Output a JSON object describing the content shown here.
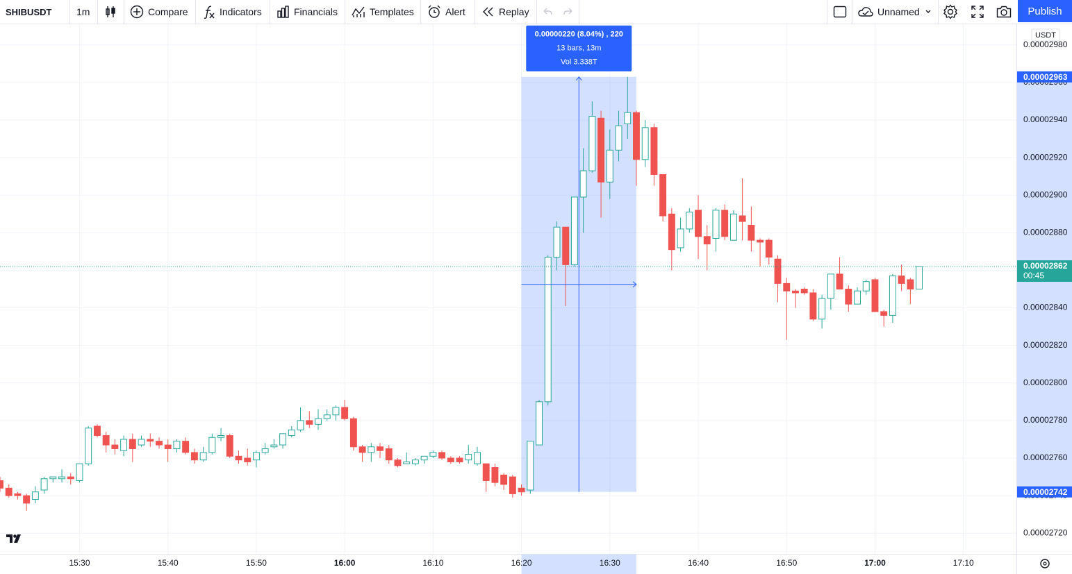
{
  "toolbar": {
    "symbol": "SHIBUSDT",
    "interval": "1m",
    "compare": "Compare",
    "indicators": "Indicators",
    "financials": "Financials",
    "templates": "Templates",
    "alert": "Alert",
    "replay": "Replay",
    "layout_name": "Unnamed",
    "publish": "Publish"
  },
  "chart_data": {
    "type": "candlestick",
    "currency": "USDT",
    "x": [
      "15:21",
      "15:22",
      "15:23",
      "15:24",
      "15:25",
      "15:26",
      "15:27",
      "15:28",
      "15:29",
      "15:30",
      "15:31",
      "15:32",
      "15:33",
      "15:34",
      "15:35",
      "15:36",
      "15:37",
      "15:38",
      "15:39",
      "15:40",
      "15:41",
      "15:42",
      "15:43",
      "15:44",
      "15:45",
      "15:46",
      "15:47",
      "15:48",
      "15:49",
      "15:50",
      "15:51",
      "15:52",
      "15:53",
      "15:54",
      "15:55",
      "15:56",
      "15:57",
      "15:58",
      "15:59",
      "16:00",
      "16:01",
      "16:02",
      "16:03",
      "16:04",
      "16:05",
      "16:06",
      "16:07",
      "16:08",
      "16:09",
      "16:10",
      "16:11",
      "16:12",
      "16:13",
      "16:14",
      "16:15",
      "16:16",
      "16:17",
      "16:18",
      "16:19",
      "16:20",
      "16:21",
      "16:22",
      "16:23",
      "16:24",
      "16:25",
      "16:26",
      "16:27",
      "16:28",
      "16:29",
      "16:30",
      "16:31",
      "16:32",
      "16:33",
      "16:34",
      "16:35",
      "16:36",
      "16:37",
      "16:38",
      "16:39",
      "16:40",
      "16:41",
      "16:42",
      "16:43",
      "16:44",
      "16:45",
      "16:46",
      "16:47",
      "16:48",
      "16:49",
      "16:50",
      "16:51",
      "16:52",
      "16:53",
      "16:54",
      "16:55",
      "16:56",
      "16:57",
      "16:58",
      "16:59",
      "17:00",
      "17:01",
      "17:02",
      "17:03",
      "17:04",
      "17:05"
    ],
    "open": [
      2.748e-05,
      2.744e-05,
      2.741e-05,
      2.74e-05,
      2.738e-05,
      2.743e-05,
      2.749e-05,
      2.749e-05,
      2.75e-05,
      2.748e-05,
      2.757e-05,
      2.777e-05,
      2.772e-05,
      2.767e-05,
      2.764e-05,
      2.77e-05,
      2.767e-05,
      2.77e-05,
      2.769e-05,
      2.767e-05,
      2.765e-05,
      2.769e-05,
      2.763e-05,
      2.759e-05,
      2.763e-05,
      2.771e-05,
      2.772e-05,
      2.761e-05,
      2.76e-05,
      2.759e-05,
      2.763e-05,
      2.766e-05,
      2.767e-05,
      2.772e-05,
      2.775e-05,
      2.78e-05,
      2.778e-05,
      2.781e-05,
      2.783e-05,
      2.787e-05,
      2.781e-05,
      2.766e-05,
      2.763e-05,
      2.766e-05,
      2.765e-05,
      2.759e-05,
      2.757e-05,
      2.757e-05,
      2.759e-05,
      2.761e-05,
      2.763e-05,
      2.76e-05,
      2.76e-05,
      2.759e-05,
      2.757e-05,
      2.757e-05,
      2.755e-05,
      2.751e-05,
      2.75e-05,
      2.744e-05,
      2.743e-05,
      2.767e-05,
      2.79e-05,
      2.867e-05,
      2.883e-05,
      2.863e-05,
      2.899e-05,
      2.913e-05,
      2.941e-05,
      2.907e-05,
      2.924e-05,
      2.938e-05,
      2.944e-05,
      2.919e-05,
      2.936e-05,
      2.911e-05,
      2.89e-05,
      2.872e-05,
      2.882e-05,
      2.892e-05,
      2.878e-05,
      2.877e-05,
      2.892e-05,
      2.876e-05,
      2.889e-05,
      2.884e-05,
      2.876e-05,
      2.876e-05,
      2.866e-05,
      2.853e-05,
      2.849e-05,
      2.85e-05,
      2.848e-05,
      2.834e-05,
      2.845e-05,
      2.858e-05,
      2.85e-05,
      2.842e-05,
      2.849e-05,
      2.855e-05,
      2.838e-05,
      2.836e-05,
      2.857e-05,
      2.855e-05,
      2.85e-05
    ],
    "high": [
      2.75e-05,
      2.746e-05,
      2.742e-05,
      2.741e-05,
      2.745e-05,
      2.75e-05,
      2.75e-05,
      2.754e-05,
      2.752e-05,
      2.757e-05,
      2.777e-05,
      2.778e-05,
      2.774e-05,
      2.77e-05,
      2.772e-05,
      2.773e-05,
      2.772e-05,
      2.773e-05,
      2.771e-05,
      2.77e-05,
      2.77e-05,
      2.771e-05,
      2.765e-05,
      2.766e-05,
      2.773e-05,
      2.776e-05,
      2.773e-05,
      2.764e-05,
      2.765e-05,
      2.764e-05,
      2.768e-05,
      2.77e-05,
      2.773e-05,
      2.777e-05,
      2.787e-05,
      2.785e-05,
      2.786e-05,
      2.786e-05,
      2.788e-05,
      2.791e-05,
      2.782e-05,
      2.767e-05,
      2.768e-05,
      2.768e-05,
      2.767e-05,
      2.76e-05,
      2.763e-05,
      2.76e-05,
      2.761e-05,
      2.764e-05,
      2.764e-05,
      2.761e-05,
      2.761e-05,
      2.767e-05,
      2.766e-05,
      2.757e-05,
      2.757e-05,
      2.752e-05,
      2.751e-05,
      2.746e-05,
      2.769e-05,
      2.791e-05,
      2.868e-05,
      2.886e-05,
      2.883e-05,
      2.899e-05,
      2.925e-05,
      2.95e-05,
      2.945e-05,
      2.935e-05,
      2.945e-05,
      2.963e-05,
      2.945e-05,
      2.94e-05,
      2.938e-05,
      2.911e-05,
      2.893e-05,
      2.888e-05,
      2.893e-05,
      2.9e-05,
      2.884e-05,
      2.893e-05,
      2.895e-05,
      2.892e-05,
      2.909e-05,
      2.894e-05,
      2.877e-05,
      2.877e-05,
      2.868e-05,
      2.856e-05,
      2.85e-05,
      2.851e-05,
      2.85e-05,
      2.847e-05,
      2.858e-05,
      2.867e-05,
      2.852e-05,
      2.851e-05,
      2.855e-05,
      2.856e-05,
      2.839e-05,
      2.858e-05,
      2.863e-05,
      2.856e-05,
      2.862e-05
    ],
    "low": [
      2.742e-05,
      2.739e-05,
      2.738e-05,
      2.732e-05,
      2.736e-05,
      2.741e-05,
      2.747e-05,
      2.747e-05,
      2.746e-05,
      2.747e-05,
      2.756e-05,
      2.771e-05,
      2.763e-05,
      2.762e-05,
      2.761e-05,
      2.758e-05,
      2.766e-05,
      2.766e-05,
      2.765e-05,
      2.758e-05,
      2.763e-05,
      2.762e-05,
      2.757e-05,
      2.758e-05,
      2.762e-05,
      2.769e-05,
      2.76e-05,
      2.757e-05,
      2.756e-05,
      2.755e-05,
      2.762e-05,
      2.765e-05,
      2.765e-05,
      2.771e-05,
      2.774e-05,
      2.776e-05,
      2.775e-05,
      2.78e-05,
      2.78e-05,
      2.78e-05,
      2.764e-05,
      2.758e-05,
      2.758e-05,
      2.76e-05,
      2.757e-05,
      2.755e-05,
      2.757e-05,
      2.756e-05,
      2.757e-05,
      2.76e-05,
      2.759e-05,
      2.757e-05,
      2.757e-05,
      2.757e-05,
      2.756e-05,
      2.742e-05,
      2.745e-05,
      2.743e-05,
      2.739e-05,
      2.74e-05,
      2.741e-05,
      2.767e-05,
      2.788e-05,
      2.86e-05,
      2.841e-05,
      2.862e-05,
      2.88e-05,
      2.912e-05,
      2.888e-05,
      2.898e-05,
      2.918e-05,
      2.93e-05,
      2.905e-05,
      2.915e-05,
      2.905e-05,
      2.886e-05,
      2.86e-05,
      2.87e-05,
      2.88e-05,
      2.866e-05,
      2.86e-05,
      2.87e-05,
      2.876e-05,
      2.876e-05,
      2.876e-05,
      2.87e-05,
      2.862e-05,
      2.863e-05,
      2.843e-05,
      2.823e-05,
      2.84e-05,
      2.847e-05,
      2.833e-05,
      2.829e-05,
      2.839e-05,
      2.85e-05,
      2.838e-05,
      2.842e-05,
      2.847e-05,
      2.838e-05,
      2.83e-05,
      2.832e-05,
      2.849e-05,
      2.842e-05,
      2.85e-05
    ],
    "close": [
      2.744e-05,
      2.74e-05,
      2.74e-05,
      2.736e-05,
      2.742e-05,
      2.749e-05,
      2.75e-05,
      2.75e-05,
      2.749e-05,
      2.757e-05,
      2.776e-05,
      2.772e-05,
      2.767e-05,
      2.765e-05,
      2.77e-05,
      2.765e-05,
      2.77e-05,
      2.769e-05,
      2.767e-05,
      2.765e-05,
      2.769e-05,
      2.763e-05,
      2.759e-05,
      2.763e-05,
      2.771e-05,
      2.772e-05,
      2.761e-05,
      2.759e-05,
      2.758e-05,
      2.763e-05,
      2.765e-05,
      2.767e-05,
      2.773e-05,
      2.775e-05,
      2.78e-05,
      2.778e-05,
      2.781e-05,
      2.783e-05,
      2.787e-05,
      2.781e-05,
      2.766e-05,
      2.763e-05,
      2.766e-05,
      2.764e-05,
      2.759e-05,
      2.756e-05,
      2.758e-05,
      2.759e-05,
      2.761e-05,
      2.763e-05,
      2.76e-05,
      2.758e-05,
      2.758e-05,
      2.762e-05,
      2.763e-05,
      2.748e-05,
      2.747e-05,
      2.746e-05,
      2.741e-05,
      2.742e-05,
      2.769e-05,
      2.79e-05,
      2.867e-05,
      2.883e-05,
      2.863e-05,
      2.899e-05,
      2.913e-05,
      2.942e-05,
      2.907e-05,
      2.924e-05,
      2.937e-05,
      2.944e-05,
      2.919e-05,
      2.936e-05,
      2.911e-05,
      2.889e-05,
      2.871e-05,
      2.882e-05,
      2.891e-05,
      2.878e-05,
      2.874e-05,
      2.892e-05,
      2.878e-05,
      2.89e-05,
      2.886e-05,
      2.876e-05,
      2.875e-05,
      2.867e-05,
      2.853e-05,
      2.849e-05,
      2.848e-05,
      2.848e-05,
      2.834e-05,
      2.845e-05,
      2.858e-05,
      2.85e-05,
      2.842e-05,
      2.849e-05,
      2.854e-05,
      2.838e-05,
      2.836e-05,
      2.857e-05,
      2.853e-05,
      2.85e-05,
      2.862e-05
    ],
    "up_color": "#26a69a",
    "down_color": "#ef5350",
    "xlim": [
      "15:21",
      "17:16"
    ],
    "xticks": [
      "15:30",
      "15:40",
      "15:50",
      "16:00",
      "16:10",
      "16:20",
      "16:30",
      "16:40",
      "16:50",
      "17:00",
      "17:10"
    ],
    "ylim": [
      2.709e-05,
      2.991e-05
    ],
    "yticks": [
      {
        "value": 2.72e-05,
        "label": "0.00002720"
      },
      {
        "value": 2.74e-05,
        "label": "0.00002740"
      },
      {
        "value": 2.76e-05,
        "label": "0.00002760"
      },
      {
        "value": 2.78e-05,
        "label": "0.00002780"
      },
      {
        "value": 2.8e-05,
        "label": "0.00002800"
      },
      {
        "value": 2.82e-05,
        "label": "0.00002820"
      },
      {
        "value": 2.84e-05,
        "label": "0.00002840"
      },
      {
        "value": 2.86e-05,
        "label": "0.00002860"
      },
      {
        "value": 2.88e-05,
        "label": "0.00002880"
      },
      {
        "value": 2.9e-05,
        "label": "0.00002900"
      },
      {
        "value": 2.92e-05,
        "label": "0.00002920"
      },
      {
        "value": 2.94e-05,
        "label": "0.00002940"
      },
      {
        "value": 2.96e-05,
        "label": "0.00002960"
      },
      {
        "value": 2.98e-05,
        "label": "0.00002980"
      }
    ],
    "grid": true,
    "last_price": 2.862e-05,
    "countdown": "00:45",
    "measurement": {
      "x_range": [
        "16:20",
        "16:33"
      ],
      "price_range": [
        2.742e-05,
        2.963e-05
      ],
      "lines": [
        "0.00000220 (8.04%) , 220",
        "13 bars, 13m",
        "Vol 3.338T"
      ],
      "color": "#2962ff"
    }
  }
}
